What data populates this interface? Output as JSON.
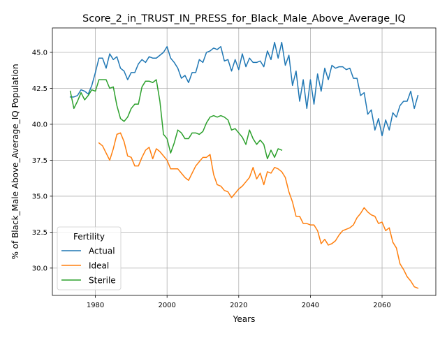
{
  "chart_data": {
    "type": "line",
    "title": "Score_2_in_TRUST_IN_PRESS_for_Black_Male_Above_Average_IQ",
    "xlabel": "Years",
    "ylabel": "% of Black_Male Above_Average_IQ Population",
    "xlim": [
      1968,
      2075
    ],
    "ylim": [
      28.1,
      46.7
    ],
    "xticks": [
      1980,
      2000,
      2020,
      2040,
      2060
    ],
    "yticks": [
      30.0,
      32.5,
      35.0,
      37.5,
      40.0,
      42.5,
      45.0
    ],
    "grid": true,
    "legend": {
      "title": "Fertility",
      "placement": "lower-left"
    },
    "series": [
      {
        "name": "Actual",
        "color": "#1f77b4",
        "x": [
          1973,
          1974,
          1975,
          1976,
          1977,
          1978,
          1979,
          1980,
          1981,
          1982,
          1983,
          1984,
          1985,
          1986,
          1987,
          1988,
          1989,
          1990,
          1991,
          1992,
          1993,
          1994,
          1995,
          1996,
          1997,
          1998,
          1999,
          2000,
          2001,
          2002,
          2003,
          2004,
          2005,
          2006,
          2007,
          2008,
          2009,
          2010,
          2011,
          2012,
          2013,
          2014,
          2015,
          2016,
          2017,
          2018,
          2019,
          2020,
          2021,
          2022,
          2023,
          2024,
          2025,
          2026,
          2027,
          2028,
          2029,
          2030,
          2031,
          2032,
          2033,
          2034,
          2035,
          2036,
          2037,
          2038,
          2039,
          2040,
          2041,
          2042,
          2043,
          2044,
          2045,
          2046,
          2047,
          2048,
          2049,
          2050,
          2051,
          2052,
          2053,
          2054,
          2055,
          2056,
          2057,
          2058,
          2059,
          2060,
          2061,
          2062,
          2063,
          2064,
          2065,
          2066,
          2067,
          2068,
          2069,
          2070
        ],
        "values": [
          41.9,
          41.9,
          42.0,
          42.4,
          42.3,
          42.1,
          42.7,
          43.6,
          44.6,
          44.6,
          43.9,
          44.9,
          44.5,
          44.7,
          43.9,
          43.7,
          43.1,
          43.6,
          43.6,
          44.2,
          44.5,
          44.3,
          44.7,
          44.6,
          44.6,
          44.8,
          45.0,
          45.4,
          44.6,
          44.3,
          43.9,
          43.2,
          43.4,
          42.9,
          43.6,
          43.6,
          44.5,
          44.3,
          45.0,
          45.1,
          45.3,
          45.2,
          45.4,
          44.4,
          44.5,
          43.7,
          44.5,
          43.8,
          44.9,
          44.0,
          44.6,
          44.3,
          44.3,
          44.4,
          44.0,
          45.1,
          44.5,
          45.7,
          44.6,
          45.7,
          44.1,
          44.8,
          42.7,
          43.7,
          41.6,
          43.1,
          41.1,
          43.1,
          41.4,
          43.5,
          42.3,
          43.9,
          43.1,
          44.1,
          43.9,
          44.0,
          44.0,
          43.8,
          43.9,
          43.2,
          43.2,
          42.0,
          42.2,
          40.7,
          41.0,
          39.6,
          40.4,
          39.2,
          40.3,
          39.6,
          40.8,
          40.5,
          41.3,
          41.6,
          41.6,
          42.3,
          41.1,
          42.0
        ]
      },
      {
        "name": "Ideal",
        "color": "#ff7f0e",
        "x": [
          1981,
          1982,
          1983,
          1984,
          1985,
          1986,
          1987,
          1988,
          1989,
          1990,
          1991,
          1992,
          1993,
          1994,
          1995,
          1996,
          1997,
          1998,
          1999,
          2000,
          2001,
          2002,
          2003,
          2004,
          2005,
          2006,
          2007,
          2008,
          2009,
          2010,
          2011,
          2012,
          2013,
          2014,
          2015,
          2016,
          2017,
          2018,
          2019,
          2020,
          2021,
          2022,
          2023,
          2024,
          2025,
          2026,
          2027,
          2028,
          2029,
          2030,
          2031,
          2032,
          2033,
          2034,
          2035,
          2036,
          2037,
          2038,
          2039,
          2040,
          2041,
          2042,
          2043,
          2044,
          2045,
          2046,
          2047,
          2048,
          2049,
          2050,
          2051,
          2052,
          2053,
          2054,
          2055,
          2056,
          2057,
          2058,
          2059,
          2060,
          2061,
          2062,
          2063,
          2064,
          2065,
          2066,
          2067,
          2068,
          2069,
          2070
        ],
        "values": [
          38.7,
          38.5,
          38.0,
          37.5,
          38.3,
          39.3,
          39.4,
          38.8,
          37.8,
          37.7,
          37.1,
          37.1,
          37.7,
          38.2,
          38.4,
          37.6,
          38.3,
          38.1,
          37.8,
          37.5,
          36.9,
          36.9,
          36.9,
          36.6,
          36.3,
          36.1,
          36.6,
          37.1,
          37.4,
          37.7,
          37.7,
          37.9,
          36.5,
          35.8,
          35.7,
          35.4,
          35.3,
          34.9,
          35.2,
          35.5,
          35.7,
          36.0,
          36.3,
          37.0,
          36.2,
          36.6,
          35.8,
          36.7,
          36.6,
          37.0,
          36.9,
          36.7,
          36.3,
          35.3,
          34.6,
          33.6,
          33.6,
          33.1,
          33.1,
          33.0,
          33.0,
          32.6,
          31.7,
          32.0,
          31.6,
          31.7,
          31.9,
          32.3,
          32.6,
          32.7,
          32.8,
          33.0,
          33.5,
          33.8,
          34.2,
          33.9,
          33.7,
          33.6,
          33.1,
          33.2,
          32.6,
          32.8,
          31.8,
          31.4,
          30.3,
          29.9,
          29.4,
          29.1,
          28.7,
          28.6
        ]
      },
      {
        "name": "Sterile",
        "color": "#2ca02c",
        "x": [
          1973,
          1974,
          1975,
          1976,
          1977,
          1978,
          1979,
          1980,
          1981,
          1982,
          1983,
          1984,
          1985,
          1986,
          1987,
          1988,
          1989,
          1990,
          1991,
          1992,
          1993,
          1994,
          1995,
          1996,
          1997,
          1998,
          1999,
          2000,
          2001,
          2002,
          2003,
          2004,
          2005,
          2006,
          2007,
          2008,
          2009,
          2010,
          2011,
          2012,
          2013,
          2014,
          2015,
          2016,
          2017,
          2018,
          2019,
          2020,
          2021,
          2022,
          2023,
          2024,
          2025,
          2026,
          2027,
          2028,
          2029,
          2030,
          2031,
          2032
        ],
        "values": [
          42.3,
          41.1,
          41.6,
          42.2,
          41.7,
          42.0,
          42.4,
          42.3,
          43.1,
          43.1,
          43.1,
          42.5,
          42.6,
          41.3,
          40.4,
          40.2,
          40.5,
          41.1,
          41.4,
          41.4,
          42.6,
          43.0,
          43.0,
          42.9,
          43.1,
          41.6,
          39.3,
          39.0,
          38.0,
          38.7,
          39.6,
          39.4,
          39.0,
          39.0,
          39.4,
          39.4,
          39.3,
          39.5,
          40.1,
          40.5,
          40.6,
          40.5,
          40.6,
          40.5,
          40.3,
          39.6,
          39.7,
          39.4,
          39.1,
          38.6,
          39.6,
          39.0,
          38.6,
          38.9,
          38.6,
          37.6,
          38.2,
          37.7,
          38.3,
          38.2
        ]
      }
    ]
  }
}
